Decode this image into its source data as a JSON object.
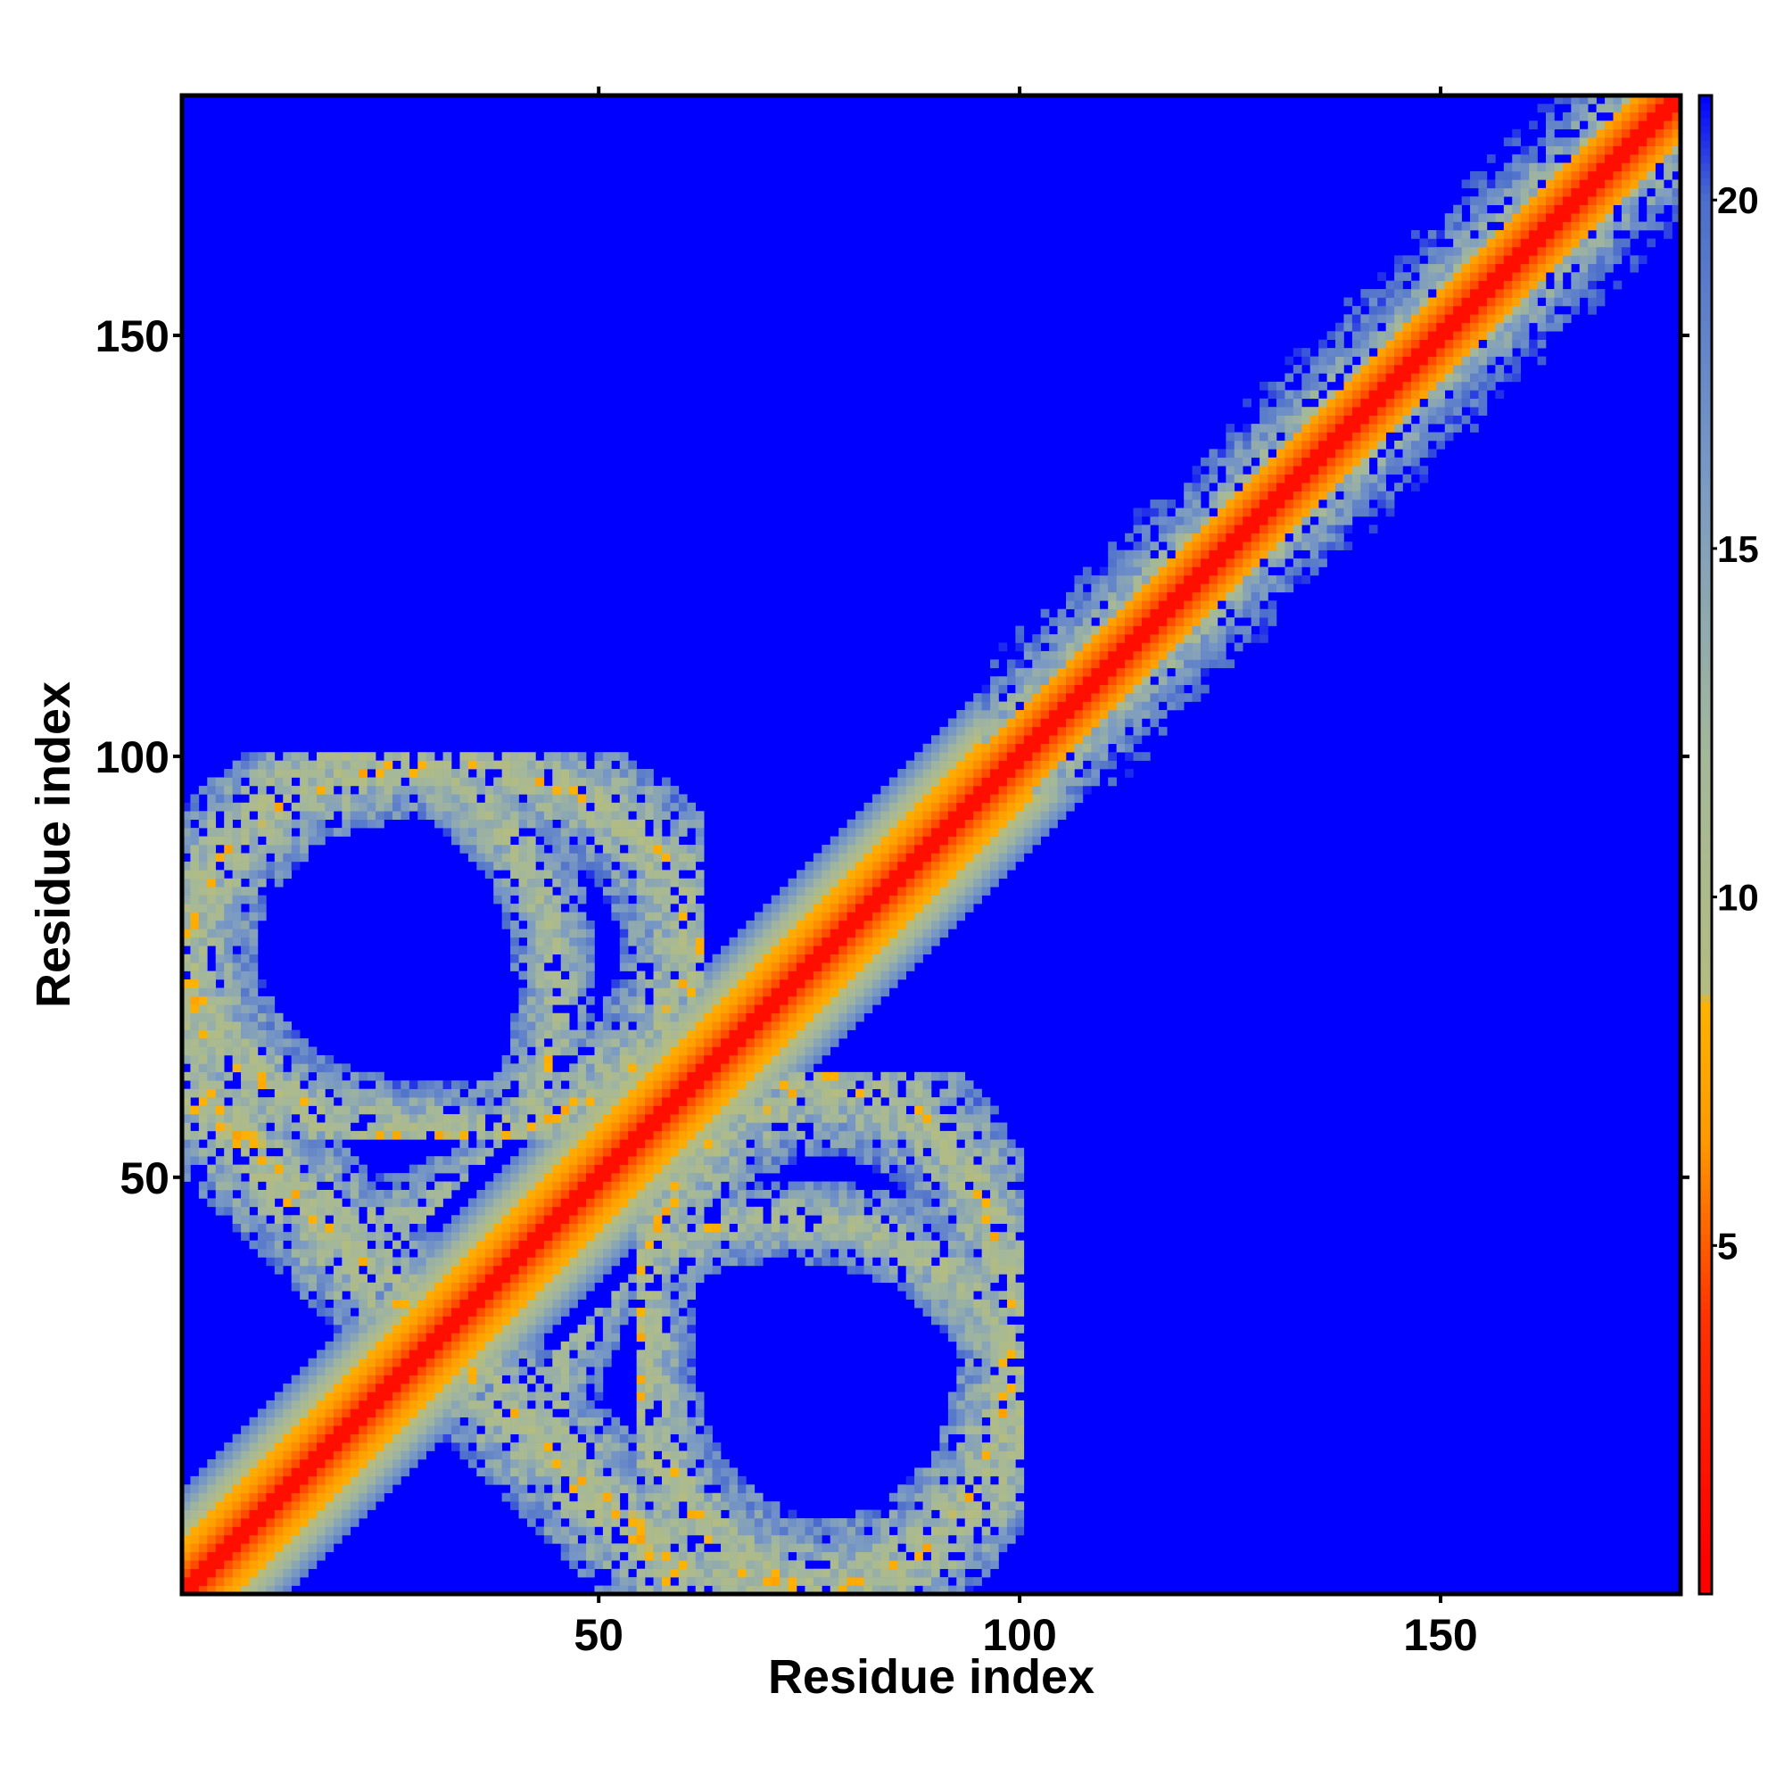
{
  "chart_data": {
    "type": "heatmap",
    "title": "",
    "xlabel": "Residue index",
    "ylabel": "Residue index",
    "xlim": [
      1,
      178
    ],
    "ylim": [
      1,
      178
    ],
    "grid": false,
    "n_residues": 178,
    "x_ticks": [
      50,
      100,
      150
    ],
    "y_ticks": [
      50,
      100,
      150
    ],
    "colorbar": {
      "range": [
        0,
        21.5
      ],
      "ticks": [
        5,
        10,
        15,
        20
      ],
      "stops": [
        {
          "value": 0.5,
          "color": "#ff0000"
        },
        {
          "value": 4.0,
          "color": "#ff3300"
        },
        {
          "value": 6.5,
          "color": "#ff9900"
        },
        {
          "value": 8.5,
          "color": "#ffb300"
        },
        {
          "value": 8.6,
          "color": "#b4bc80"
        },
        {
          "value": 12.0,
          "color": "#a4b89a"
        },
        {
          "value": 16.0,
          "color": "#7a9ac4"
        },
        {
          "value": 20.0,
          "color": "#4c6ecc"
        },
        {
          "value": 21.5,
          "color": "#0000ff"
        }
      ]
    },
    "features": [
      {
        "kind": "main-diagonal",
        "from": 1,
        "to": 178,
        "description_values": "distance < 8 near diagonal, rising to ~20 at offset ~10"
      },
      {
        "kind": "off-diagonal-contact",
        "x": [
          1,
          28
        ],
        "y": [
          28,
          100
        ],
        "orientation": "anti-parallel"
      },
      {
        "kind": "off-diagonal-contact",
        "x": [
          28,
          100
        ],
        "y": [
          1,
          28
        ],
        "orientation": "anti-parallel"
      },
      {
        "kind": "off-diagonal-contact",
        "x": [
          1,
          62
        ],
        "y": [
          55,
          100
        ],
        "orientation": "parallel-arc"
      },
      {
        "kind": "off-diagonal-contact",
        "x": [
          55,
          100
        ],
        "y": [
          1,
          62
        ],
        "orientation": "parallel-arc"
      }
    ]
  }
}
